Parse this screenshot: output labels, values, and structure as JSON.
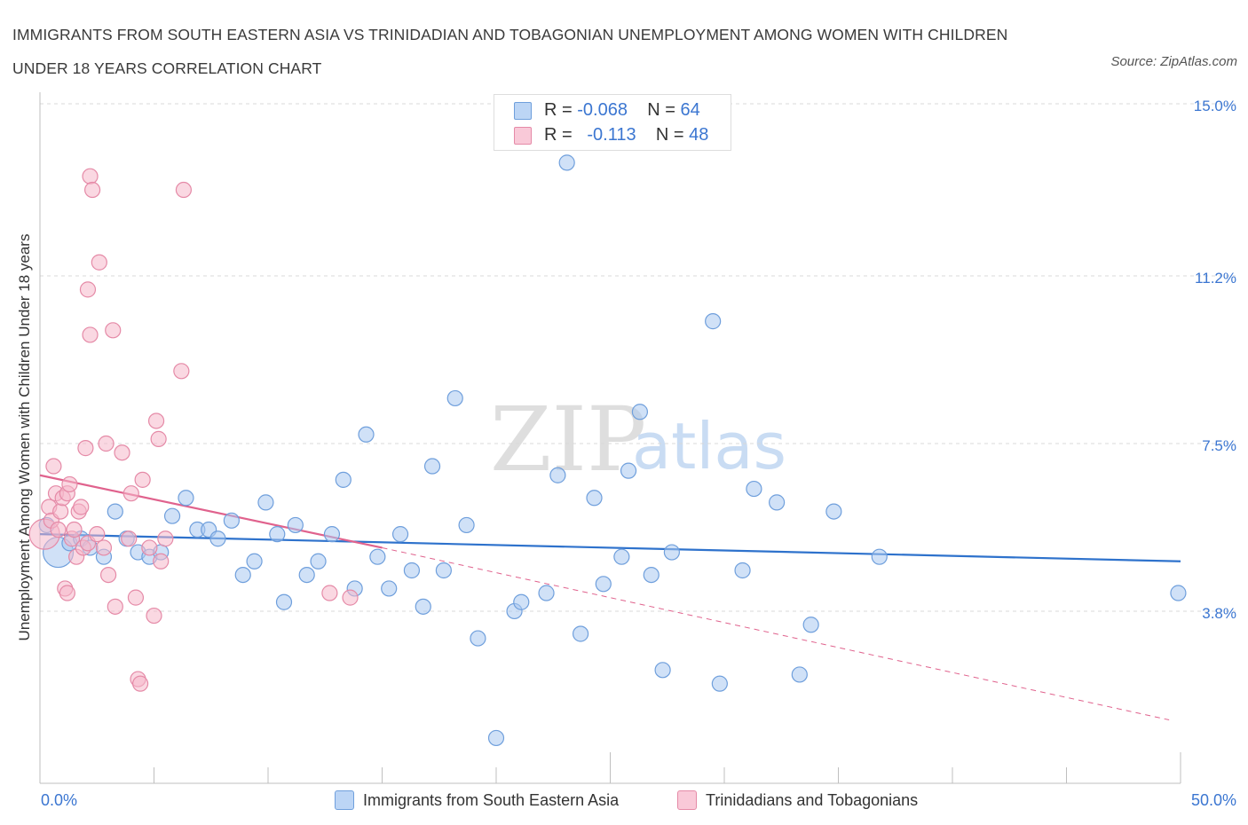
{
  "title": "IMMIGRANTS FROM SOUTH EASTERN ASIA VS TRINIDADIAN AND TOBAGONIAN UNEMPLOYMENT AMONG WOMEN WITH CHILDREN UNDER 18 YEARS CORRELATION CHART",
  "source": "Source: ZipAtlas.com",
  "watermark": {
    "zip": "ZIP",
    "atlas": "atlas"
  },
  "legend_top": {
    "rows": [
      {
        "r_label": "R =",
        "r_value": "-0.068",
        "n_label": "N =",
        "n_value": "64"
      },
      {
        "r_label": "R =",
        "r_value": "-0.113",
        "n_label": "N =",
        "n_value": "48"
      }
    ]
  },
  "legend_bottom": [
    "Immigrants from South Eastern Asia",
    "Trinidadians and Tobagonians"
  ],
  "colors": {
    "blue_fill": "#a9c8f0",
    "blue_stroke": "#6f9fdc",
    "blue_line": "#2e72cc",
    "pink_fill": "#f6b8cb",
    "pink_stroke": "#e58aa7",
    "pink_line": "#e0628d",
    "axis_text": "#3b76d1",
    "grid": "#d8d8d8"
  },
  "chart_data": {
    "type": "scatter",
    "title": "IMMIGRANTS FROM SOUTH EASTERN ASIA VS TRINIDADIAN AND TOBAGONIAN UNEMPLOYMENT AMONG WOMEN WITH CHILDREN UNDER 18 YEARS CORRELATION CHART",
    "xlabel": "",
    "ylabel": "Unemployment Among Women with Children Under 18 years",
    "xlim": [
      0,
      50
    ],
    "ylim": [
      0,
      15.0
    ],
    "x_tick_labels": [
      "0.0%",
      "50.0%"
    ],
    "y_ticks": [
      3.8,
      7.5,
      11.2,
      15.0
    ],
    "y_tick_labels": [
      "3.8%",
      "7.5%",
      "11.2%",
      "15.0%"
    ],
    "grid": true,
    "legend_position": "top-center",
    "series": [
      {
        "name": "Immigrants from South Eastern Asia",
        "R": -0.068,
        "N": 64,
        "trend": {
          "x": [
            0,
            50
          ],
          "y": [
            5.5,
            4.9
          ]
        },
        "points": [
          {
            "x": 0.8,
            "y": 5.1,
            "big": true
          },
          {
            "x": 1.3,
            "y": 5.3
          },
          {
            "x": 1.8,
            "y": 5.4
          },
          {
            "x": 2.2,
            "y": 5.2
          },
          {
            "x": 2.8,
            "y": 5.0
          },
          {
            "x": 3.3,
            "y": 6.0
          },
          {
            "x": 3.8,
            "y": 5.4
          },
          {
            "x": 4.3,
            "y": 5.1
          },
          {
            "x": 4.8,
            "y": 5.0
          },
          {
            "x": 5.3,
            "y": 5.1
          },
          {
            "x": 5.8,
            "y": 5.9
          },
          {
            "x": 6.4,
            "y": 6.3
          },
          {
            "x": 6.9,
            "y": 5.6
          },
          {
            "x": 7.4,
            "y": 5.6
          },
          {
            "x": 7.8,
            "y": 5.4
          },
          {
            "x": 8.4,
            "y": 5.8
          },
          {
            "x": 8.9,
            "y": 4.6
          },
          {
            "x": 9.4,
            "y": 4.9
          },
          {
            "x": 9.9,
            "y": 6.2
          },
          {
            "x": 10.4,
            "y": 5.5
          },
          {
            "x": 10.7,
            "y": 4.0
          },
          {
            "x": 11.2,
            "y": 5.7
          },
          {
            "x": 11.7,
            "y": 4.6
          },
          {
            "x": 12.2,
            "y": 4.9
          },
          {
            "x": 12.8,
            "y": 5.5
          },
          {
            "x": 13.3,
            "y": 6.7
          },
          {
            "x": 13.8,
            "y": 4.3
          },
          {
            "x": 14.3,
            "y": 7.7
          },
          {
            "x": 14.8,
            "y": 5.0
          },
          {
            "x": 15.3,
            "y": 4.3
          },
          {
            "x": 15.8,
            "y": 5.5
          },
          {
            "x": 16.3,
            "y": 4.7
          },
          {
            "x": 16.8,
            "y": 3.9
          },
          {
            "x": 17.2,
            "y": 7.0
          },
          {
            "x": 17.7,
            "y": 4.7
          },
          {
            "x": 18.2,
            "y": 8.5
          },
          {
            "x": 18.7,
            "y": 5.7
          },
          {
            "x": 19.2,
            "y": 3.2
          },
          {
            "x": 20.0,
            "y": 1.0
          },
          {
            "x": 20.8,
            "y": 3.8
          },
          {
            "x": 21.1,
            "y": 4.0
          },
          {
            "x": 22.2,
            "y": 4.2
          },
          {
            "x": 22.7,
            "y": 6.8
          },
          {
            "x": 23.1,
            "y": 13.7
          },
          {
            "x": 23.7,
            "y": 3.3
          },
          {
            "x": 24.3,
            "y": 6.3
          },
          {
            "x": 24.7,
            "y": 4.4
          },
          {
            "x": 25.5,
            "y": 5.0
          },
          {
            "x": 25.8,
            "y": 6.9
          },
          {
            "x": 26.3,
            "y": 8.2
          },
          {
            "x": 26.8,
            "y": 4.6
          },
          {
            "x": 27.3,
            "y": 2.5
          },
          {
            "x": 27.7,
            "y": 5.1
          },
          {
            "x": 29.8,
            "y": 2.2
          },
          {
            "x": 29.5,
            "y": 10.2
          },
          {
            "x": 30.8,
            "y": 4.7
          },
          {
            "x": 31.3,
            "y": 6.5
          },
          {
            "x": 32.3,
            "y": 6.2
          },
          {
            "x": 33.3,
            "y": 2.4
          },
          {
            "x": 33.8,
            "y": 3.5
          },
          {
            "x": 34.8,
            "y": 6.0
          },
          {
            "x": 36.8,
            "y": 5.0
          },
          {
            "x": 49.9,
            "y": 4.2
          },
          {
            "x": 0.3,
            "y": 5.7
          }
        ]
      },
      {
        "name": "Trinidadians and Tobagonians",
        "R": -0.113,
        "N": 48,
        "trend": {
          "x": [
            0,
            15
          ],
          "y": [
            6.8,
            5.2
          ]
        },
        "trend_dashed": {
          "x": [
            15,
            49.5
          ],
          "y": [
            5.2,
            1.4
          ]
        },
        "points": [
          {
            "x": 0.2,
            "y": 5.5,
            "big": true
          },
          {
            "x": 0.4,
            "y": 6.1
          },
          {
            "x": 0.5,
            "y": 5.8
          },
          {
            "x": 0.6,
            "y": 7.0
          },
          {
            "x": 0.7,
            "y": 6.4
          },
          {
            "x": 0.8,
            "y": 5.6
          },
          {
            "x": 0.9,
            "y": 6.0
          },
          {
            "x": 1.0,
            "y": 6.3
          },
          {
            "x": 1.1,
            "y": 4.3
          },
          {
            "x": 1.2,
            "y": 4.2
          },
          {
            "x": 1.2,
            "y": 6.4
          },
          {
            "x": 1.3,
            "y": 6.6
          },
          {
            "x": 1.4,
            "y": 5.4
          },
          {
            "x": 1.5,
            "y": 5.6
          },
          {
            "x": 1.6,
            "y": 5.0
          },
          {
            "x": 1.7,
            "y": 6.0
          },
          {
            "x": 1.8,
            "y": 6.1
          },
          {
            "x": 1.9,
            "y": 5.2
          },
          {
            "x": 2.0,
            "y": 7.4
          },
          {
            "x": 2.1,
            "y": 10.9
          },
          {
            "x": 2.1,
            "y": 5.3
          },
          {
            "x": 2.2,
            "y": 9.9
          },
          {
            "x": 2.2,
            "y": 13.4
          },
          {
            "x": 2.3,
            "y": 13.1
          },
          {
            "x": 2.5,
            "y": 5.5
          },
          {
            "x": 2.6,
            "y": 11.5
          },
          {
            "x": 2.8,
            "y": 5.2
          },
          {
            "x": 2.9,
            "y": 7.5
          },
          {
            "x": 3.0,
            "y": 4.6
          },
          {
            "x": 3.2,
            "y": 10.0
          },
          {
            "x": 3.3,
            "y": 3.9
          },
          {
            "x": 3.6,
            "y": 7.3
          },
          {
            "x": 3.9,
            "y": 5.4
          },
          {
            "x": 4.0,
            "y": 6.4
          },
          {
            "x": 4.2,
            "y": 4.1
          },
          {
            "x": 4.3,
            "y": 2.3
          },
          {
            "x": 4.4,
            "y": 2.2
          },
          {
            "x": 4.5,
            "y": 6.7
          },
          {
            "x": 4.8,
            "y": 5.2
          },
          {
            "x": 5.0,
            "y": 3.7
          },
          {
            "x": 5.1,
            "y": 8.0
          },
          {
            "x": 5.2,
            "y": 7.6
          },
          {
            "x": 5.3,
            "y": 4.9
          },
          {
            "x": 5.5,
            "y": 5.4
          },
          {
            "x": 6.2,
            "y": 9.1
          },
          {
            "x": 6.3,
            "y": 13.1
          },
          {
            "x": 12.7,
            "y": 4.2
          },
          {
            "x": 13.6,
            "y": 4.1
          }
        ]
      }
    ]
  }
}
